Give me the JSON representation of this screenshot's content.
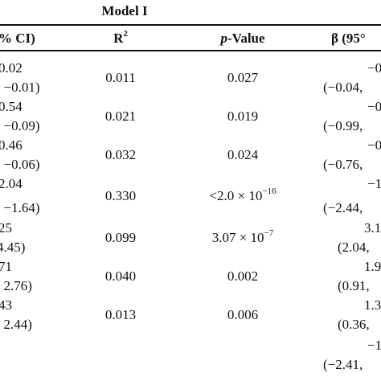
{
  "header": {
    "model_title": "Model I",
    "col_ci_partial": "% CI)",
    "col_r2_base": "R",
    "col_r2_sup": "2",
    "col_p_italic": "p",
    "col_p_rest": "-Value",
    "col_beta_partial": "β (95°"
  },
  "rows": [
    {
      "ci_top": "0.02",
      "ci_bottom": ". −0.01)",
      "r2": "0.011",
      "p": "0.027",
      "beta_top": "−0",
      "beta_bottom": "(−0.04,"
    },
    {
      "ci_top": "0.54",
      "ci_bottom": ". −0.09)",
      "r2": "0.021",
      "p": "0.019",
      "beta_top": "−0",
      "beta_bottom": "(−0.99,"
    },
    {
      "ci_top": "0.46",
      "ci_bottom": ". −0.06)",
      "r2": "0.032",
      "p": "0.024",
      "beta_top": "−0",
      "beta_bottom": "(−0.76,"
    },
    {
      "ci_top": "2.04",
      "ci_bottom": ". −1.64)",
      "r2": "0.330",
      "p_base": "<2.0 × 10",
      "p_exp": "−16",
      "beta_top": "−1",
      "beta_bottom": "(−2.44,"
    },
    {
      "ci_top": "25",
      "ci_bottom": "4.45)",
      "r2": "0.099",
      "p_base": "3.07 × 10",
      "p_exp": "−7",
      "beta_top": "3.1",
      "beta_bottom": "(2.04,"
    },
    {
      "ci_top": "71",
      "ci_bottom": ". 2.76)",
      "r2": "0.040",
      "p": "0.002",
      "beta_top": "1.9",
      "beta_bottom": "(0.91,"
    },
    {
      "ci_top": "43",
      "ci_bottom": ". 2.44)",
      "r2": "0.013",
      "p": "0.006",
      "beta_top": "1.3",
      "beta_bottom": "(0.36,"
    },
    {
      "beta_top": "−1",
      "beta_bottom": "(−2.41,"
    }
  ]
}
